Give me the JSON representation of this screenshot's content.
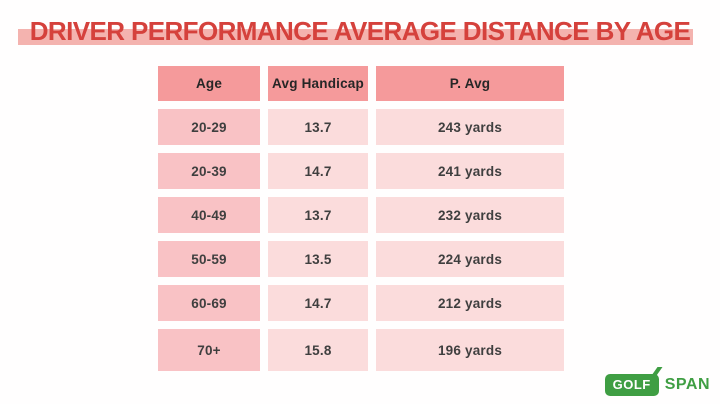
{
  "title": "DRIVER PERFORMANCE AVERAGE DISTANCE BY AGE",
  "colors": {
    "title_red": "#d5413c",
    "title_highlight": "#f4b3af",
    "header_cell": "#f59a9b",
    "age_cell": "#f9c2c5",
    "data_cell": "#fbdcdc",
    "table_text": "#3f3f3f",
    "logo_green": "#3f9e43",
    "background": "#fffefe"
  },
  "chart_data": {
    "type": "table",
    "title": "DRIVER PERFORMANCE AVERAGE DISTANCE BY AGE",
    "columns": [
      "Age",
      "Avg Handicap",
      "P. Avg"
    ],
    "rows": [
      [
        "20-29",
        "13.7",
        "243 yards"
      ],
      [
        "20-39",
        "14.7",
        "241 yards"
      ],
      [
        "40-49",
        "13.7",
        "232 yards"
      ],
      [
        "50-59",
        "13.5",
        "224 yards"
      ],
      [
        "60-69",
        "14.7",
        "212 yards"
      ],
      [
        "70+",
        "15.8",
        "196 yards"
      ]
    ]
  },
  "logo": {
    "golf": "GOLF",
    "span": "SPAN"
  }
}
